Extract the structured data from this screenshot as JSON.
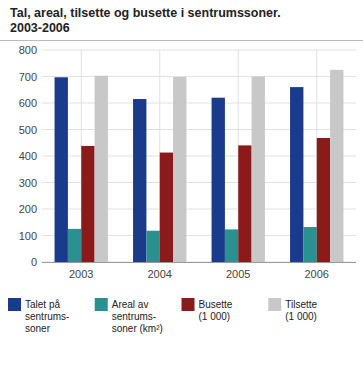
{
  "chart_data": {
    "type": "bar",
    "title": "Tal, areal, tilsette og busette i sentrumssoner.",
    "subtitle": "2003-2006",
    "categories": [
      "2003",
      "2004",
      "2005",
      "2006"
    ],
    "series": [
      {
        "name": "Talet på\nsentrums-\nsoner",
        "color": "#1a3a8c",
        "values": [
          697,
          615,
          620,
          660
        ]
      },
      {
        "name": "Areal av\nsentrums-\nsoner (km²)",
        "color": "#2a9090",
        "values": [
          125,
          118,
          123,
          132
        ]
      },
      {
        "name": "Busette\n(1 000)",
        "color": "#8b1a1a",
        "values": [
          438,
          413,
          440,
          468
        ]
      },
      {
        "name": "Tilsette\n(1 000)",
        "color": "#c8c8c8",
        "values": [
          703,
          698,
          700,
          725
        ]
      }
    ],
    "ylim": [
      0,
      800
    ],
    "yticks": [
      0,
      100,
      200,
      300,
      400,
      500,
      600,
      700,
      800
    ],
    "grid": true,
    "legend": "bottom"
  }
}
